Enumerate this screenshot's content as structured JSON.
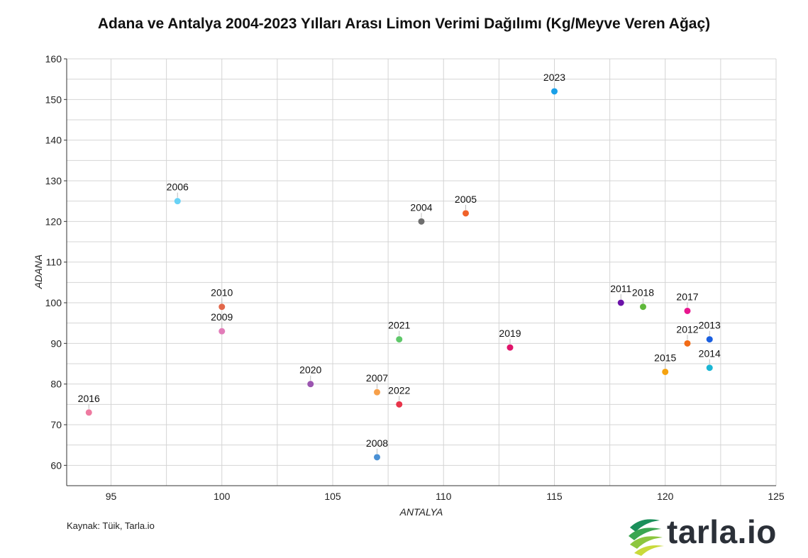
{
  "title": "Adana ve Antalya 2004-2023 Yılları Arası Limon Verimi Dağılımı (Kg/Meyve Veren Ağaç)",
  "source": "Kaynak: Tüik, Tarla.io",
  "logo": {
    "text": "tarla.io",
    "icon": "tarla-leaf-icon",
    "colors": [
      "#1a8f5a",
      "#5bb94a",
      "#b7d43a",
      "#2b3038"
    ]
  },
  "chart_data": {
    "type": "scatter",
    "title": "Adana ve Antalya 2004-2023 Yılları Arası Limon Verimi Dağılımı (Kg/Meyve Veren Ağaç)",
    "xlabel": "ANTALYA",
    "ylabel": "ADANA",
    "xlim": [
      93,
      125
    ],
    "ylim": [
      55,
      160
    ],
    "xticks": [
      95,
      100,
      105,
      110,
      115,
      120,
      125
    ],
    "yticks": [
      60,
      70,
      80,
      90,
      100,
      110,
      120,
      130,
      140,
      150,
      160
    ],
    "grid": true,
    "points": [
      {
        "label": "2004",
        "x": 109,
        "y": 120,
        "color": "#6e6e6e"
      },
      {
        "label": "2005",
        "x": 111,
        "y": 122,
        "color": "#f0622a"
      },
      {
        "label": "2006",
        "x": 98,
        "y": 125,
        "color": "#69d2f5"
      },
      {
        "label": "2007",
        "x": 107,
        "y": 78,
        "color": "#f7a04a"
      },
      {
        "label": "2008",
        "x": 107,
        "y": 62,
        "color": "#4a90d4"
      },
      {
        "label": "2009",
        "x": 100,
        "y": 93,
        "color": "#e27cb9"
      },
      {
        "label": "2010",
        "x": 100,
        "y": 99,
        "color": "#e2674a"
      },
      {
        "label": "2011",
        "x": 118,
        "y": 100,
        "color": "#6b12a8"
      },
      {
        "label": "2012",
        "x": 121,
        "y": 90,
        "color": "#f26b16"
      },
      {
        "label": "2013",
        "x": 122,
        "y": 91,
        "color": "#1a5fe0"
      },
      {
        "label": "2014",
        "x": 122,
        "y": 84,
        "color": "#1ab6d4"
      },
      {
        "label": "2015",
        "x": 120,
        "y": 83,
        "color": "#f5a20f"
      },
      {
        "label": "2016",
        "x": 94,
        "y": 73,
        "color": "#ee7aa0"
      },
      {
        "label": "2017",
        "x": 121,
        "y": 98,
        "color": "#e8168e"
      },
      {
        "label": "2018",
        "x": 119,
        "y": 99,
        "color": "#5fb83a"
      },
      {
        "label": "2019",
        "x": 113,
        "y": 89,
        "color": "#e0146a"
      },
      {
        "label": "2020",
        "x": 104,
        "y": 80,
        "color": "#9b55b0"
      },
      {
        "label": "2021",
        "x": 108,
        "y": 91,
        "color": "#5fc86a"
      },
      {
        "label": "2022",
        "x": 108,
        "y": 75,
        "color": "#e8344a"
      },
      {
        "label": "2023",
        "x": 115,
        "y": 152,
        "color": "#1aa0e8"
      }
    ]
  }
}
